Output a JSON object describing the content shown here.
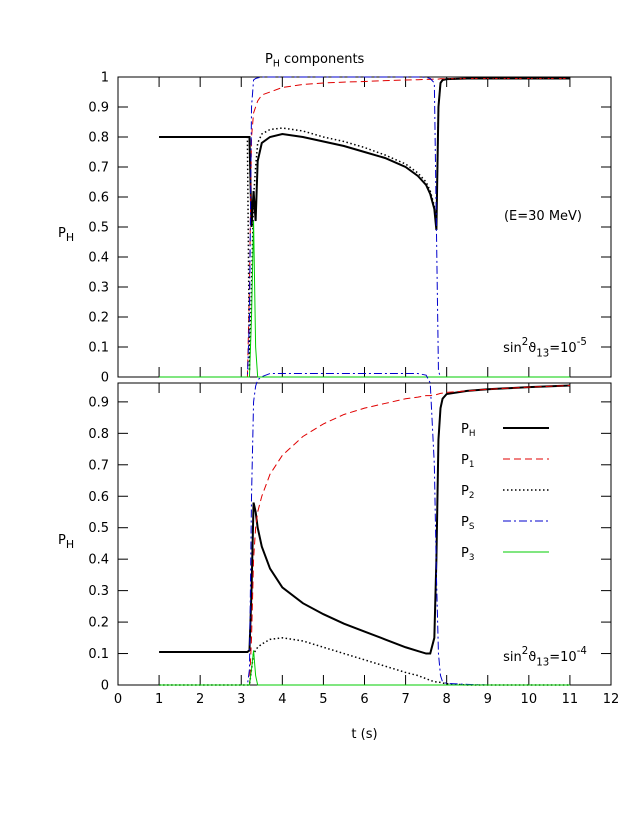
{
  "chart_data": [
    {
      "type": "line",
      "title": {
        "base": "P",
        "sub": "H",
        "rest": " components"
      },
      "ylabel": {
        "base": "P",
        "sub": "H"
      },
      "x": [
        1,
        3.0,
        3.15,
        3.2,
        3.25,
        3.3,
        3.35,
        3.4,
        3.5,
        3.7,
        4,
        4.5,
        5,
        5.5,
        6,
        6.5,
        7,
        7.3,
        7.5,
        7.6,
        7.7,
        7.75,
        7.8,
        7.85,
        7.9,
        8,
        8.5,
        9,
        10,
        11
      ],
      "xlim": [
        0,
        12
      ],
      "ylim": [
        0,
        1
      ],
      "yticks": [
        0,
        0.1,
        0.2,
        0.3,
        0.4,
        0.5,
        0.6,
        0.7,
        0.8,
        0.9,
        1
      ],
      "series": [
        {
          "color": "#000000",
          "dash": "solid",
          "width": 2,
          "values": [
            0.8,
            0.8,
            0.8,
            0.8,
            0.5,
            0.62,
            0.52,
            0.72,
            0.78,
            0.8,
            0.81,
            0.8,
            0.785,
            0.77,
            0.75,
            0.73,
            0.7,
            0.67,
            0.64,
            0.61,
            0.56,
            0.49,
            0.9,
            0.98,
            0.99,
            0.993,
            0.995,
            0.995,
            0.995,
            0.995
          ]
        },
        {
          "color": "#e00000",
          "dash": "dashed",
          "width": 1,
          "values": [
            0,
            0,
            0,
            0.3,
            0.8,
            0.88,
            0.9,
            0.92,
            0.94,
            0.95,
            0.965,
            0.975,
            0.98,
            0.983,
            0.985,
            0.988,
            0.99,
            0.991,
            0.992,
            0.992,
            0.993,
            0.993,
            0.993,
            0.994,
            0.994,
            0.994,
            0.995,
            0.995,
            0.995,
            0.995
          ]
        },
        {
          "color": "#000000",
          "dash": "dotted",
          "width": 1.5,
          "values": [
            0.8,
            0.8,
            0.8,
            0.02,
            0.3,
            0.6,
            0.7,
            0.78,
            0.81,
            0.825,
            0.83,
            0.82,
            0.8,
            0.785,
            0.765,
            0.74,
            0.71,
            0.68,
            0.65,
            0.62,
            0.57,
            0.5,
            0.9,
            0.98,
            0.99,
            0.993,
            0.995,
            0.995,
            0.995,
            0.995
          ]
        },
        {
          "color": "#0000cc",
          "dash": "dashdot",
          "width": 1,
          "values": [
            0,
            0,
            0,
            0.2,
            0.9,
            0.99,
            0.995,
            0.997,
            1,
            1,
            1,
            1,
            1,
            1,
            1,
            1,
            1,
            1,
            0.999,
            0.995,
            0.98,
            0.5,
            0.02,
            0,
            0,
            0,
            0,
            0,
            0,
            0
          ]
        },
        {
          "color": "#00cc00",
          "dash": "solid",
          "width": 1,
          "values": [
            0,
            0,
            0,
            0,
            0.2,
            0.52,
            0.1,
            0,
            0,
            0,
            0,
            0,
            0,
            0,
            0,
            0,
            0,
            0,
            0,
            0,
            0,
            0,
            0,
            0,
            0,
            0,
            0,
            0,
            0,
            0
          ]
        }
      ],
      "annotations": [
        [
          {
            "text": "(E=30 MeV)"
          }
        ],
        [
          {
            "text": "sin"
          },
          {
            "text": "2",
            "shift": "sup"
          },
          {
            "text": "ϑ"
          },
          {
            "text": "13",
            "shift": "sub"
          },
          {
            "text": "=10"
          },
          {
            "text": "-5",
            "shift": "sup"
          }
        ]
      ]
    },
    {
      "type": "line",
      "ylabel": {
        "base": "P",
        "sub": "H"
      },
      "xlabel": "t (s)",
      "x": [
        1,
        3.0,
        3.15,
        3.2,
        3.25,
        3.3,
        3.35,
        3.4,
        3.5,
        3.7,
        4,
        4.5,
        5,
        5.5,
        6,
        6.5,
        7,
        7.3,
        7.5,
        7.6,
        7.7,
        7.75,
        7.8,
        7.85,
        7.9,
        8,
        8.5,
        9,
        10,
        11
      ],
      "xlim": [
        0,
        12
      ],
      "xticks": [
        0,
        1,
        2,
        3,
        4,
        5,
        6,
        7,
        8,
        9,
        10,
        11,
        12
      ],
      "ylim": [
        0,
        0.96
      ],
      "yticks": [
        0,
        0.1,
        0.2,
        0.3,
        0.4,
        0.5,
        0.6,
        0.7,
        0.8,
        0.9
      ],
      "legend": "right",
      "series": [
        {
          "name": {
            "base": "P",
            "sub": "H"
          },
          "color": "#000000",
          "dash": "solid",
          "width": 2,
          "values": [
            0.105,
            0.105,
            0.105,
            0.11,
            0.3,
            0.58,
            0.55,
            0.5,
            0.44,
            0.37,
            0.31,
            0.26,
            0.225,
            0.195,
            0.17,
            0.145,
            0.12,
            0.108,
            0.1,
            0.1,
            0.15,
            0.4,
            0.78,
            0.88,
            0.91,
            0.925,
            0.935,
            0.94,
            0.947,
            0.952
          ]
        },
        {
          "name": {
            "base": "P",
            "sub": "1"
          },
          "color": "#e00000",
          "dash": "dashed",
          "width": 1,
          "values": [
            0,
            0,
            0,
            0,
            0.15,
            0.4,
            0.5,
            0.55,
            0.6,
            0.67,
            0.73,
            0.79,
            0.83,
            0.86,
            0.88,
            0.895,
            0.91,
            0.915,
            0.92,
            0.92,
            0.922,
            0.923,
            0.925,
            0.927,
            0.928,
            0.93,
            0.935,
            0.94,
            0.947,
            0.952
          ]
        },
        {
          "name": {
            "base": "P",
            "sub": "2"
          },
          "color": "#000000",
          "dash": "dotted",
          "width": 1.5,
          "values": [
            0,
            0,
            0,
            0,
            0.05,
            0.1,
            0.11,
            0.12,
            0.13,
            0.145,
            0.15,
            0.14,
            0.12,
            0.1,
            0.08,
            0.06,
            0.04,
            0.03,
            0.02,
            0.015,
            0.01,
            0.01,
            0.01,
            0.008,
            0.006,
            0.004,
            0,
            0,
            0,
            0
          ]
        },
        {
          "name": {
            "base": "P",
            "sub": "S"
          },
          "color": "#0000cc",
          "dash": "dashdot",
          "width": 1,
          "values": [
            0,
            0,
            0,
            0.05,
            0.6,
            0.9,
            0.95,
            0.97,
            0.98,
            0.99,
            0.99,
            0.99,
            0.99,
            0.99,
            0.99,
            0.99,
            0.99,
            0.99,
            0.985,
            0.96,
            0.7,
            0.35,
            0.1,
            0.03,
            0.01,
            0.005,
            0.002,
            0,
            0,
            0
          ]
        },
        {
          "name": {
            "base": "P",
            "sub": "3"
          },
          "color": "#00cc00",
          "dash": "solid",
          "width": 1,
          "values": [
            0,
            0,
            0,
            0,
            0.05,
            0.11,
            0.03,
            0,
            0,
            0,
            0,
            0,
            0,
            0,
            0,
            0,
            0,
            0,
            0,
            0,
            0,
            0,
            0,
            0,
            0,
            0,
            0,
            0,
            0,
            0
          ]
        }
      ],
      "annotations": [
        [
          {
            "text": "sin"
          },
          {
            "text": "2",
            "shift": "sup"
          },
          {
            "text": "ϑ"
          },
          {
            "text": "13",
            "shift": "sub"
          },
          {
            "text": "=10"
          },
          {
            "text": "-4",
            "shift": "sup"
          }
        ]
      ]
    }
  ]
}
